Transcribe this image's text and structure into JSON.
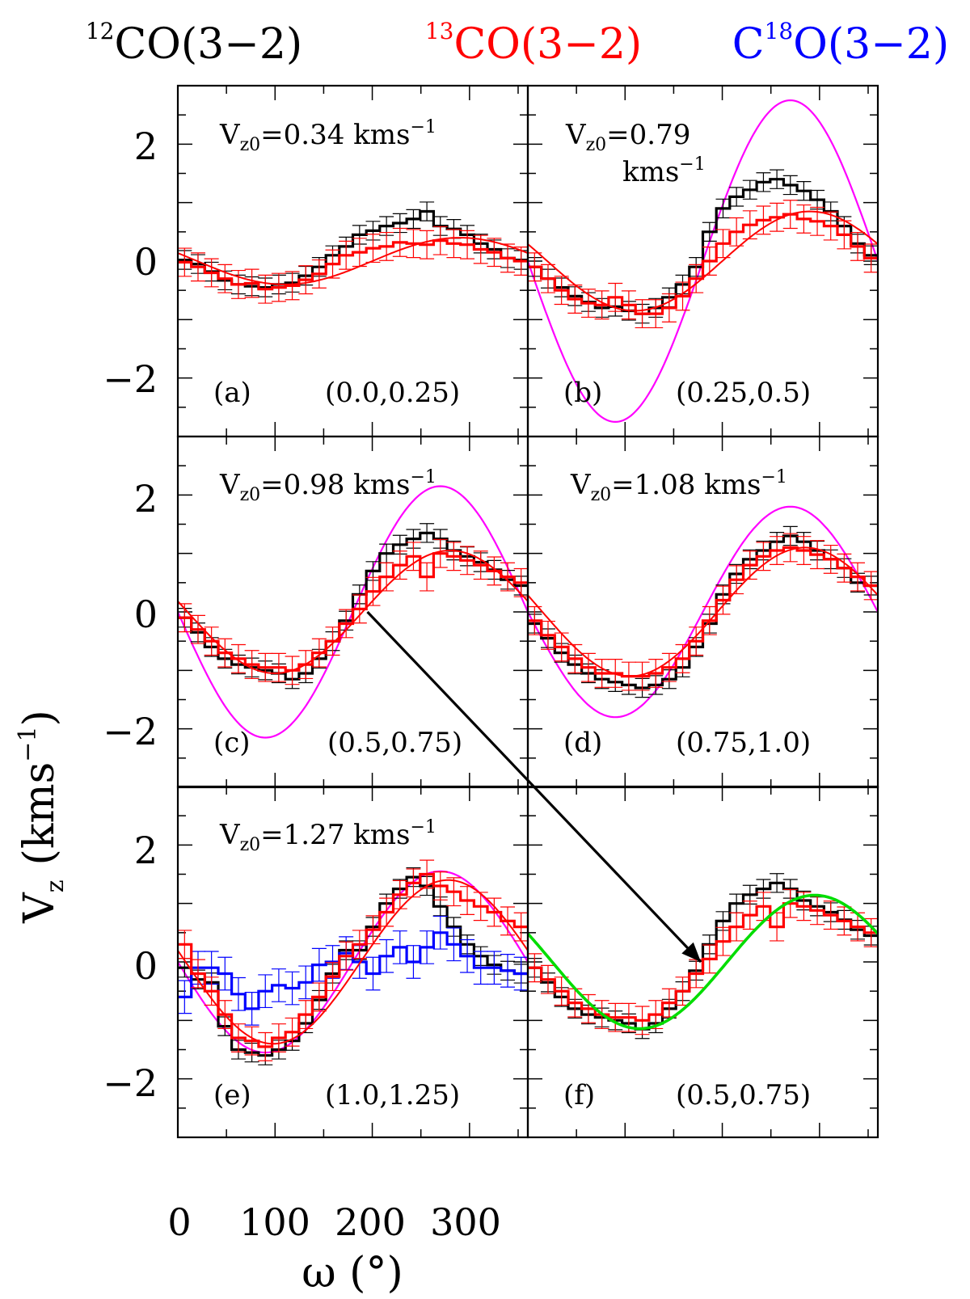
{
  "figure": {
    "legend": [
      {
        "sup": "12",
        "species": "CO(3−2)",
        "color": "#000000"
      },
      {
        "sup": "13",
        "species": "CO(3−2)",
        "color": "#ff0000"
      },
      {
        "pre": "C",
        "sup": "18",
        "species": "O(3−2)",
        "color": "#0000ff"
      }
    ],
    "xlabel": "ω (°)",
    "ylabel": "V",
    "ylabel_sub": "z",
    "ylabel_unit": "(kms",
    "ylabel_exp": "−1",
    "ylabel_close": ")",
    "x_ticklabels": [
      "0",
      "100",
      "200",
      "300"
    ],
    "y_ticklabels": [
      "2",
      "0",
      "−2"
    ]
  },
  "chart_data": {
    "type": "line",
    "xlabel": "ω (°)",
    "ylabel": "Vz (kms⁻¹)",
    "xlim": [
      0,
      360
    ],
    "ylim": [
      -3,
      3
    ],
    "x_ticks": [
      0,
      100,
      200,
      300
    ],
    "y_ticks": [
      -2,
      0,
      2
    ],
    "colors": {
      "co12": "#000000",
      "co13": "#ff0000",
      "c18o": "#0000ff",
      "model": "#ff00ff",
      "fit": "#00dd00",
      "arrow": "#000000"
    },
    "panels": [
      {
        "id": "a",
        "label": "(a)",
        "range": "(0.0,0.25)",
        "vz0_prefix": "V",
        "vz0_sub": "z0",
        "vz0_value": "=0.34  kms",
        "vz0_unit2": "",
        "vz0_exp": "−1",
        "co12": [
          0.02,
          -0.05,
          -0.18,
          -0.33,
          -0.4,
          -0.43,
          -0.45,
          -0.4,
          -0.37,
          -0.25,
          -0.1,
          0.1,
          0.25,
          0.45,
          0.52,
          0.6,
          0.65,
          0.72,
          0.85,
          0.6,
          0.55,
          0.45,
          0.3,
          0.2,
          0.05,
          0.02
        ],
        "co13": [
          -0.02,
          -0.1,
          -0.2,
          -0.3,
          -0.4,
          -0.38,
          -0.48,
          -0.45,
          -0.42,
          -0.32,
          -0.22,
          -0.05,
          0.1,
          0.15,
          0.22,
          0.25,
          0.32,
          0.3,
          0.28,
          0.35,
          0.3,
          0.28,
          0.2,
          0.15,
          0.05,
          0.0
        ],
        "red_fit": {
          "A": 0.4,
          "phi": 20
        },
        "model": null
      },
      {
        "id": "b",
        "label": "(b)",
        "range": "(0.25,0.5)",
        "vz0_prefix": "V",
        "vz0_sub": "z0",
        "vz0_value": "=0.79",
        "vz0_unit2": "kms",
        "vz0_exp": "−1",
        "co12": [
          -0.1,
          -0.3,
          -0.45,
          -0.6,
          -0.7,
          -0.8,
          -0.78,
          -0.85,
          -0.9,
          -0.8,
          -0.62,
          -0.4,
          -0.1,
          0.5,
          0.9,
          1.1,
          1.22,
          1.35,
          1.4,
          1.3,
          1.2,
          1.05,
          0.85,
          0.6,
          0.3,
          0.1
        ],
        "co13": [
          -0.1,
          -0.3,
          -0.5,
          -0.65,
          -0.72,
          -0.75,
          -0.62,
          -0.75,
          -0.9,
          -0.9,
          -0.8,
          -0.6,
          -0.3,
          0.0,
          0.3,
          0.5,
          0.62,
          0.7,
          0.75,
          0.8,
          0.72,
          0.68,
          0.6,
          0.45,
          0.25,
          0.05
        ],
        "red_fit": {
          "A": 0.85,
          "phi": 20
        },
        "model": {
          "A": 2.75
        }
      },
      {
        "id": "c",
        "label": "(c)",
        "range": "(0.5,0.75)",
        "vz0_prefix": "V",
        "vz0_sub": "z0",
        "vz0_value": "=0.98  kms",
        "vz0_unit2": "",
        "vz0_exp": "−1",
        "co12": [
          -0.1,
          -0.35,
          -0.6,
          -0.8,
          -0.9,
          -0.95,
          -1.0,
          -1.05,
          -1.15,
          -1.05,
          -0.8,
          -0.5,
          -0.15,
          0.3,
          0.7,
          1.0,
          1.15,
          1.25,
          1.35,
          1.25,
          1.05,
          0.95,
          0.85,
          0.72,
          0.55,
          0.45
        ],
        "co13": [
          -0.1,
          -0.3,
          -0.5,
          -0.7,
          -0.8,
          -0.9,
          -0.95,
          -0.95,
          -1.0,
          -0.9,
          -0.7,
          -0.5,
          -0.2,
          0.05,
          0.35,
          0.6,
          0.8,
          0.95,
          0.6,
          1.0,
          0.95,
          0.88,
          0.8,
          0.7,
          0.6,
          0.5
        ],
        "red_fit": {
          "A": 1.05,
          "phi": 10
        },
        "model": {
          "A": 2.15
        }
      },
      {
        "id": "d",
        "label": "(d)",
        "range": "(0.75,1.0)",
        "vz0_prefix": "V",
        "vz0_sub": "z0",
        "vz0_value": "=1.08  kms",
        "vz0_unit2": "",
        "vz0_exp": "−1",
        "co12": [
          -0.2,
          -0.45,
          -0.7,
          -0.9,
          -1.05,
          -1.15,
          -1.2,
          -1.25,
          -1.3,
          -1.25,
          -1.15,
          -0.95,
          -0.6,
          -0.2,
          0.3,
          0.65,
          0.9,
          1.05,
          1.2,
          1.3,
          1.2,
          1.05,
          0.9,
          0.75,
          0.5,
          0.45
        ],
        "co13": [
          -0.15,
          -0.4,
          -0.6,
          -0.8,
          -0.95,
          -1.05,
          -1.05,
          -1.1,
          -1.1,
          -1.05,
          -0.95,
          -0.8,
          -0.5,
          -0.15,
          0.2,
          0.55,
          0.8,
          0.95,
          1.05,
          1.1,
          1.05,
          0.98,
          0.9,
          0.75,
          0.6,
          0.45
        ],
        "red_fit": {
          "A": 1.1,
          "phi": 15
        },
        "model": {
          "A": 1.8
        }
      },
      {
        "id": "e",
        "label": "(e)",
        "range": "(1.0,1.25)",
        "vz0_prefix": "V",
        "vz0_sub": "z0",
        "vz0_value": "=1.27  kms",
        "vz0_unit2": "",
        "vz0_exp": "−1",
        "co12": [
          -0.1,
          -0.3,
          -0.35,
          -1.1,
          -1.5,
          -1.55,
          -1.6,
          -1.5,
          -1.35,
          -1.05,
          -0.65,
          -0.2,
          0.2,
          0.2,
          0.6,
          1.0,
          1.25,
          1.45,
          1.3,
          0.95,
          0.6,
          0.3,
          0.1,
          -0.05,
          -0.15,
          -0.2
        ],
        "co13": [
          0.3,
          -0.2,
          -0.5,
          -0.9,
          -1.3,
          -1.35,
          -1.45,
          -1.3,
          -1.2,
          -0.9,
          -0.6,
          -0.25,
          0.1,
          0.3,
          0.55,
          0.85,
          1.15,
          1.35,
          1.5,
          1.3,
          1.2,
          1.05,
          0.95,
          0.85,
          0.7,
          0.6
        ],
        "c18o": [
          -0.6,
          -0.1,
          -0.1,
          -0.2,
          -0.55,
          -0.8,
          -0.5,
          -0.4,
          -0.45,
          -0.35,
          -0.05,
          0.0,
          0.15,
          0.0,
          -0.2,
          0.1,
          0.25,
          0.0,
          0.25,
          0.5,
          0.3,
          0.1,
          -0.1,
          -0.1,
          -0.15,
          -0.2
        ],
        "red_fit": {
          "A": 1.4,
          "phi": 8
        },
        "model": {
          "A": 1.55
        }
      },
      {
        "id": "f",
        "label": "(f)",
        "range": "(0.5,0.75)",
        "vz0_prefix": "",
        "vz0_sub": "",
        "vz0_value": "",
        "vz0_unit2": "",
        "vz0_exp": "",
        "co12": [
          -0.1,
          -0.35,
          -0.6,
          -0.8,
          -0.9,
          -0.95,
          -1.0,
          -1.05,
          -1.15,
          -1.05,
          -0.8,
          -0.5,
          -0.15,
          0.3,
          0.7,
          1.0,
          1.15,
          1.25,
          1.35,
          1.25,
          1.05,
          0.95,
          0.85,
          0.72,
          0.55,
          0.45
        ],
        "co13": [
          -0.1,
          -0.3,
          -0.5,
          -0.7,
          -0.8,
          -0.9,
          -0.95,
          -0.95,
          -1.0,
          -0.9,
          -0.7,
          -0.5,
          -0.2,
          0.05,
          0.35,
          0.6,
          0.8,
          0.95,
          0.6,
          1.0,
          0.95,
          0.88,
          0.8,
          0.7,
          0.6,
          0.5
        ],
        "red_fit": null,
        "green_fit": {
          "A": 1.05,
          "phi": 10,
          "x0": 0,
          "y0": 0.3
        },
        "model": null
      }
    ],
    "arrow": {
      "from_panel": "c",
      "from": [
        195,
        0.0
      ],
      "to_panel": "f",
      "to": [
        178,
        0.0
      ]
    }
  }
}
